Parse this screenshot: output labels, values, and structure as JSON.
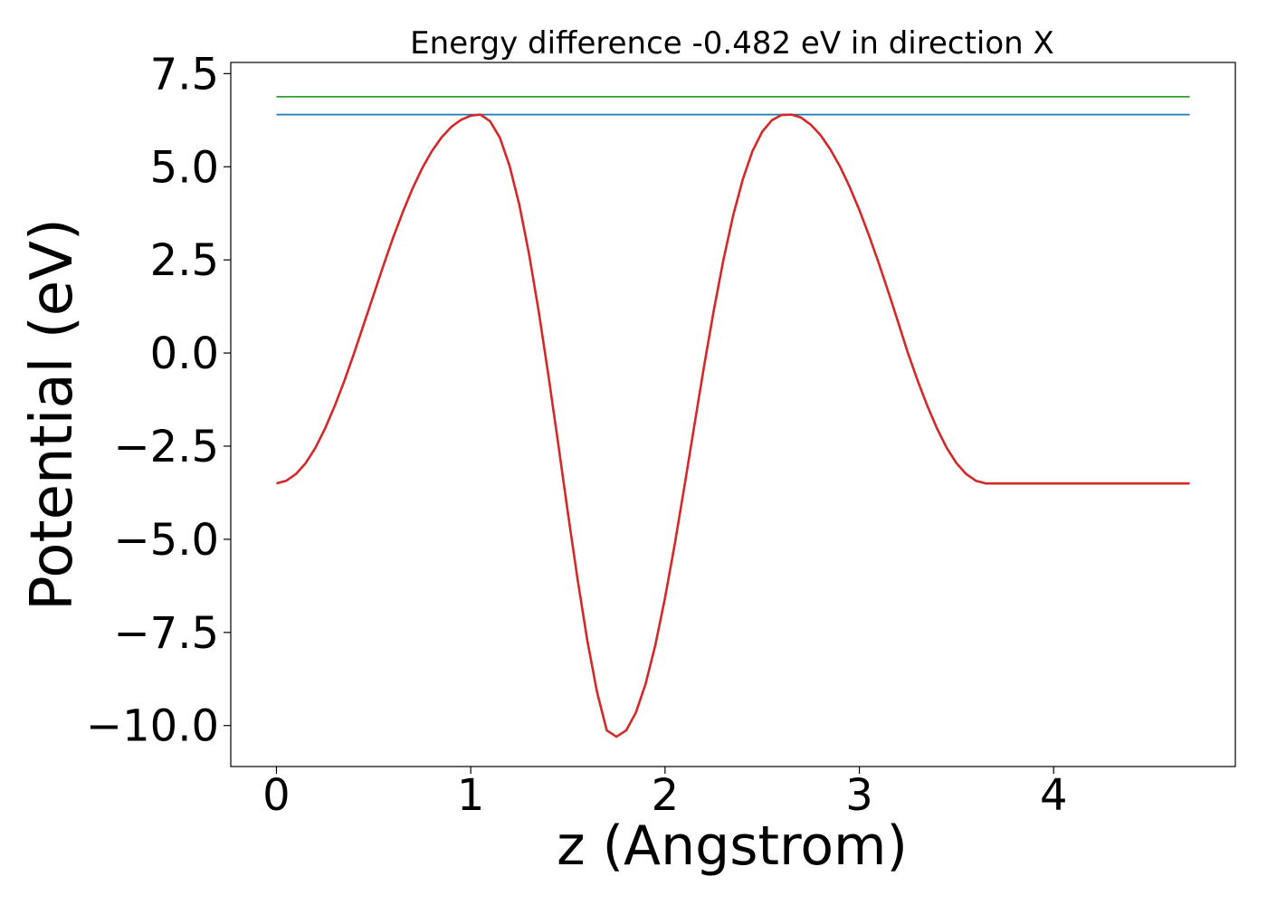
{
  "chart_data": {
    "type": "line",
    "title": "Energy difference -0.482 eV in direction X",
    "xlabel": "z (Angstrom)",
    "ylabel": "Potential (eV)",
    "xlim": [
      -0.235,
      4.935
    ],
    "ylim": [
      -11.1,
      7.8
    ],
    "x_ticks": [
      {
        "value": 0,
        "label": "0"
      },
      {
        "value": 1,
        "label": "1"
      },
      {
        "value": 2,
        "label": "2"
      },
      {
        "value": 3,
        "label": "3"
      },
      {
        "value": 4,
        "label": "4"
      }
    ],
    "y_ticks": [
      {
        "value": 7.5,
        "label": "7.5"
      },
      {
        "value": 5.0,
        "label": "5.0"
      },
      {
        "value": 2.5,
        "label": "2.5"
      },
      {
        "value": 0.0,
        "label": "0.0"
      },
      {
        "value": -2.5,
        "label": "−2.5"
      },
      {
        "value": -5.0,
        "label": "−5.0"
      },
      {
        "value": -7.5,
        "label": "−7.5"
      },
      {
        "value": -10.0,
        "label": "−10.0"
      }
    ],
    "grid": false,
    "legend": false,
    "series": [
      {
        "color": "#2ca02c",
        "x": [
          0,
          4.7
        ],
        "y": [
          6.88,
          6.88
        ]
      },
      {
        "color": "#1f77b4",
        "x": [
          0,
          4.7
        ],
        "y": [
          6.4,
          6.4
        ]
      },
      {
        "color": "#d62728",
        "x": [
          0.0,
          0.05,
          0.1,
          0.15,
          0.2,
          0.25,
          0.3,
          0.35,
          0.4,
          0.45,
          0.5,
          0.55,
          0.6,
          0.65,
          0.7,
          0.75,
          0.8,
          0.85,
          0.9,
          0.95,
          1.0,
          1.05,
          1.1,
          1.15,
          1.2,
          1.25,
          1.3,
          1.35,
          1.4,
          1.45,
          1.5,
          1.55,
          1.6,
          1.65,
          1.7,
          1.75,
          1.8,
          1.85,
          1.9,
          1.95,
          2.0,
          2.05,
          2.1,
          2.15,
          2.2,
          2.25,
          2.3,
          2.35,
          2.4,
          2.45,
          2.5,
          2.55,
          2.6,
          2.65,
          2.7,
          2.75,
          2.8,
          2.85,
          2.9,
          2.95,
          3.0,
          3.05,
          3.1,
          3.15,
          3.2,
          3.25,
          3.3,
          3.35,
          3.4,
          3.45,
          3.5,
          3.55,
          3.6,
          3.65,
          3.7,
          3.75,
          3.8,
          3.85,
          3.9,
          3.95,
          4.0,
          4.05,
          4.1,
          4.15,
          4.2,
          4.25,
          4.3,
          4.35,
          4.4,
          4.45,
          4.5,
          4.55,
          4.6,
          4.65,
          4.7
        ],
        "y": [
          -3.5,
          -3.43,
          -3.25,
          -2.96,
          -2.55,
          -2.03,
          -1.42,
          -0.74,
          0.0,
          0.78,
          1.56,
          2.34,
          3.09,
          3.78,
          4.41,
          4.96,
          5.42,
          5.79,
          6.07,
          6.26,
          6.37,
          6.4,
          6.22,
          5.78,
          5.02,
          3.98,
          2.66,
          1.11,
          -0.61,
          -2.43,
          -4.29,
          -6.08,
          -7.72,
          -9.1,
          -10.13,
          -10.3,
          -10.13,
          -9.65,
          -8.88,
          -7.84,
          -6.57,
          -5.13,
          -3.57,
          -1.97,
          -0.38,
          1.12,
          2.49,
          3.68,
          4.66,
          5.42,
          5.94,
          6.25,
          6.39,
          6.4,
          6.32,
          6.13,
          5.85,
          5.47,
          5.01,
          4.46,
          3.84,
          3.15,
          2.41,
          1.63,
          0.82,
          0.0,
          -0.74,
          -1.42,
          -2.03,
          -2.55,
          -2.96,
          -3.25,
          -3.43,
          -3.5,
          -3.5,
          -3.5,
          -3.5,
          -3.5,
          -3.5,
          -3.5,
          -3.5,
          -3.5,
          -3.5,
          -3.5,
          -3.5,
          -3.5,
          -3.5,
          -3.5,
          -3.5,
          -3.5,
          -3.5,
          -3.5,
          -3.5,
          -3.5,
          -3.5
        ]
      }
    ]
  }
}
